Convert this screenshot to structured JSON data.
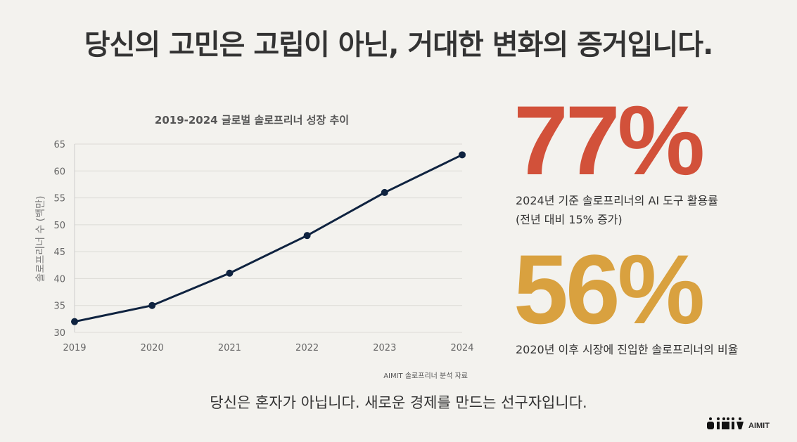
{
  "headline": "당신의 고민은 고립이 아닌, 거대한 변화의 증거입니다.",
  "chart_data": {
    "type": "line",
    "title": "2019-2024 글로벌 솔로프리너 성장 추이",
    "xlabel": "",
    "ylabel": "솔로프리너 수 (백만)",
    "categories": [
      "2019",
      "2020",
      "2021",
      "2022",
      "2023",
      "2024"
    ],
    "values": [
      32,
      35,
      41,
      48,
      56,
      63
    ],
    "ylim": [
      30,
      65
    ],
    "yticks": [
      "30",
      "35",
      "40",
      "45",
      "50",
      "55",
      "60",
      "65"
    ],
    "grid": true,
    "line_color": "#0f2340",
    "source": "AIMIT 솔로프리너 분석 자료"
  },
  "stats": [
    {
      "value": "77%",
      "desc_line1": "2024년 기준 솔로프리너의 AI 도구 활용률",
      "desc_line2": "(전년 대비 15% 증가)",
      "color": "#d2513a"
    },
    {
      "value": "56%",
      "desc_line1": "2020년 이후 시장에 진입한 솔로프리너의 비율",
      "color": "#d9a13f"
    }
  ],
  "tagline": "당신은 혼자가 아닙니다. 새로운 경제를 만드는 선구자입니다.",
  "logo": {
    "text": "AIMIT"
  }
}
